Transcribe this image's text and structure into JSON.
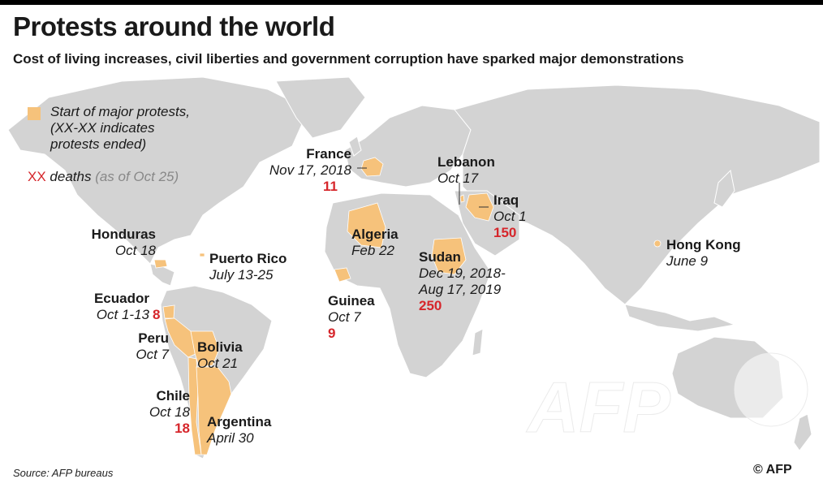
{
  "title": "Protests around the world",
  "subtitle": "Cost of living increases, civil liberties and government corruption have sparked major demonstrations",
  "legend": {
    "protest_text_1": "Start of major protests,",
    "protest_text_2": "(XX-XX indicates",
    "protest_text_3": "protests ended)",
    "deaths_marker": "XX",
    "deaths_text": " deaths ",
    "deaths_asof": "(as of Oct 25)"
  },
  "colors": {
    "protest": "#f6c27b",
    "land": "#d3d3d3",
    "deaths": "#d6262b"
  },
  "protests": [
    {
      "country": "France",
      "date": "Nov 17, 2018",
      "deaths": "11"
    },
    {
      "country": "Lebanon",
      "date": "Oct 17",
      "deaths": ""
    },
    {
      "country": "Iraq",
      "date": "Oct 1",
      "deaths": "150"
    },
    {
      "country": "Honduras",
      "date": "Oct 18",
      "deaths": ""
    },
    {
      "country": "Puerto Rico",
      "date": "July 13-25",
      "deaths": ""
    },
    {
      "country": "Algeria",
      "date": "Feb 22",
      "deaths": ""
    },
    {
      "country": "Hong Kong",
      "date": "June 9",
      "deaths": ""
    },
    {
      "country": "Sudan",
      "date_1": "Dec 19, 2018-",
      "date_2": "Aug 17, 2019",
      "deaths": "250"
    },
    {
      "country": "Ecuador",
      "date": "Oct 1-13",
      "deaths": "8"
    },
    {
      "country": "Guinea",
      "date": "Oct 7",
      "deaths": "9"
    },
    {
      "country": "Peru",
      "date": "Oct 7",
      "deaths": ""
    },
    {
      "country": "Bolivia",
      "date": "Oct 21",
      "deaths": ""
    },
    {
      "country": "Chile",
      "date": "Oct 18",
      "deaths": "18"
    },
    {
      "country": "Argentina",
      "date": "April 30",
      "deaths": ""
    }
  ],
  "source": "Source: AFP bureaus",
  "credit": "© AFP",
  "watermark": "AFP"
}
